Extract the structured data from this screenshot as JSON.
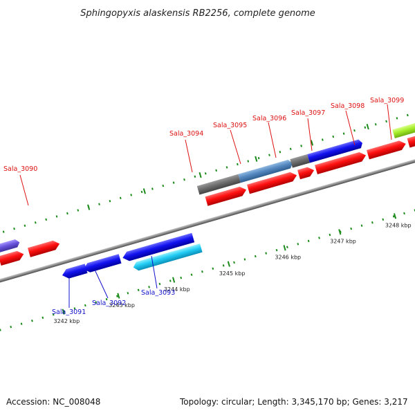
{
  "title": "Sphingopyxis alaskensis RB2256, complete genome",
  "footer": {
    "accession": "Accession: NC_008048",
    "summary": "Topology: circular; Length: 3,345,170 bp; Genes: 3,217"
  },
  "colors": {
    "forward_label": "#dd1111",
    "reverse_label": "#1111cc",
    "tick": "#1a8a1a",
    "backbone": "#8a8a8a"
  },
  "genes_forward": [
    {
      "name": "Sala_3090"
    },
    {
      "name": "Sala_3094"
    },
    {
      "name": "Sala_3095"
    },
    {
      "name": "Sala_3096"
    },
    {
      "name": "Sala_3097"
    },
    {
      "name": "Sala_3098"
    },
    {
      "name": "Sala_3099"
    }
  ],
  "genes_reverse": [
    {
      "name": "Sala_3091"
    },
    {
      "name": "Sala_3092"
    },
    {
      "name": "Sala_3093"
    }
  ],
  "kbp_labels": [
    "3242 kbp",
    "3243 kbp",
    "3244 kbp",
    "3245 kbp",
    "3246 kbp",
    "3247 kbp",
    "3248 kbp"
  ]
}
